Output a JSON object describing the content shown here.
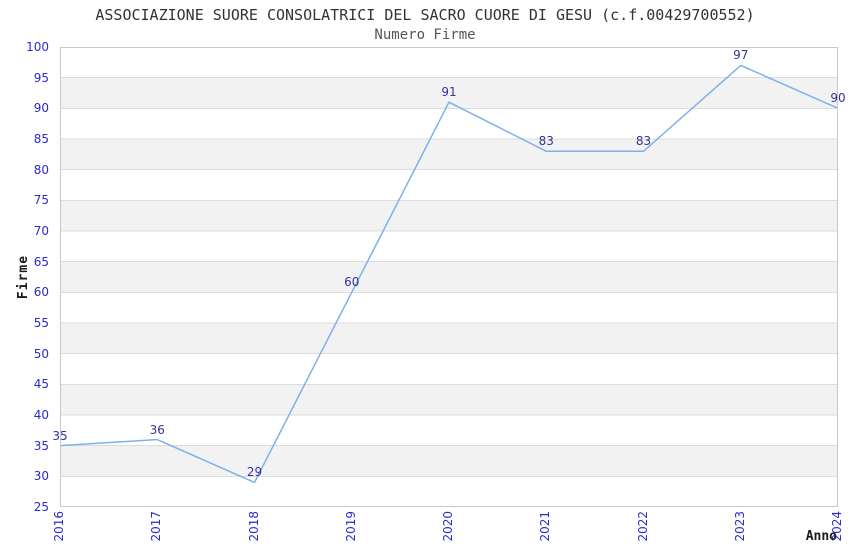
{
  "chart_data": {
    "type": "line",
    "title": "ASSOCIAZIONE SUORE CONSOLATRICI DEL SACRO CUORE DI GESU (c.f.00429700552)",
    "subtitle": "Numero Firme",
    "xlabel": "Anno",
    "ylabel": "Firme",
    "categories": [
      "2016",
      "2017",
      "2018",
      "2019",
      "2020",
      "2021",
      "2022",
      "2023",
      "2024"
    ],
    "values": [
      35,
      36,
      29,
      60,
      91,
      83,
      83,
      97,
      90
    ],
    "ylim": [
      25,
      100
    ],
    "ytick_step": 5,
    "grid": "alternating-horizontal-bands",
    "legend": "none",
    "data_labels_visible": true,
    "colors": {
      "line": "#7db1e8",
      "data_label": "#333399",
      "tick_label": "#2a2ad0",
      "band": "#f2f2f2",
      "gridline": "#dcdcdc",
      "plot_border": "#c8c8c8",
      "title": "#333333",
      "subtitle": "#555555",
      "axis_label": "#1a1a1a",
      "background": "#ffffff"
    }
  }
}
